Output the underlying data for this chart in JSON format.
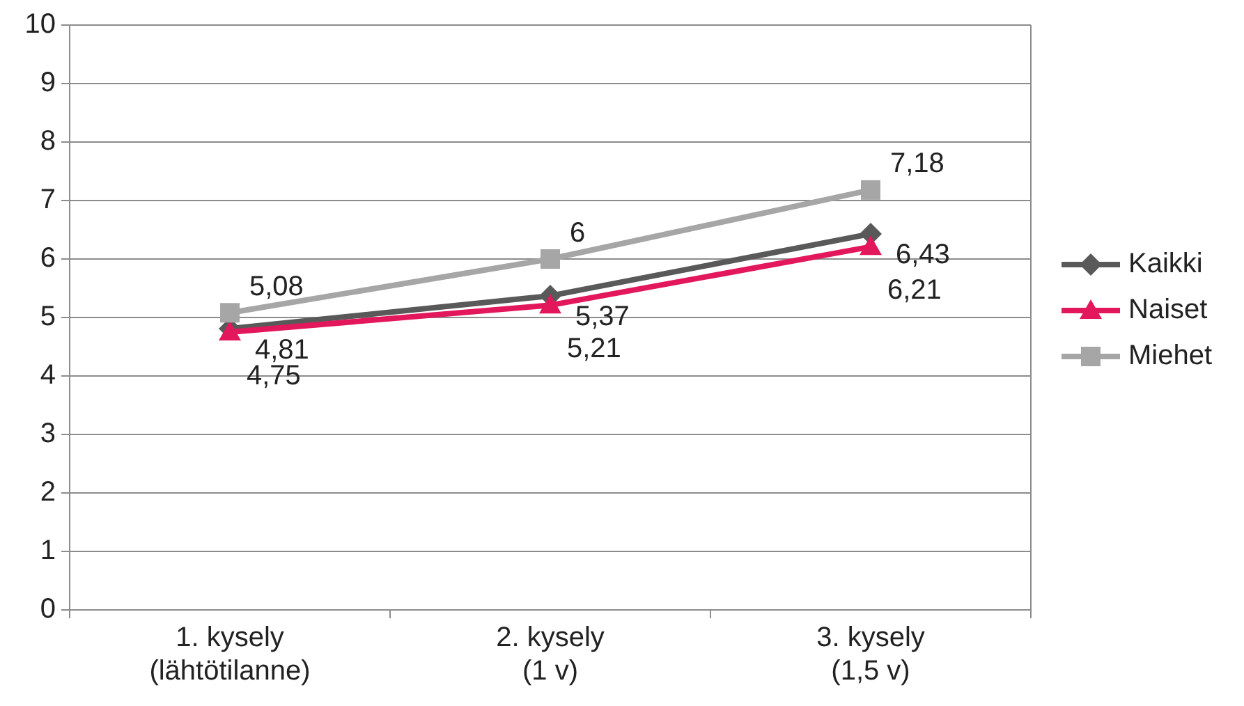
{
  "chart_data": {
    "type": "line",
    "categories": [
      "1. kysely\n(lähtötilanne)",
      "2. kysely\n(1 v)",
      "3. kysely\n(1,5 v)"
    ],
    "series": [
      {
        "name": "Kaikki",
        "color": "#595959",
        "marker": "diamond",
        "values": [
          4.81,
          5.37,
          6.43
        ],
        "value_labels": [
          "4,81",
          "5,37",
          "6,43"
        ]
      },
      {
        "name": "Naiset",
        "color": "#e3185c",
        "marker": "triangle",
        "values": [
          4.75,
          5.21,
          6.21
        ],
        "value_labels": [
          "4,75",
          "5,21",
          "6,21"
        ]
      },
      {
        "name": "Miehet",
        "color": "#a6a6a6",
        "marker": "square",
        "values": [
          5.08,
          6,
          7.18
        ],
        "value_labels": [
          "5,08",
          "6",
          "7,18"
        ]
      }
    ],
    "ylim": [
      0,
      10
    ],
    "yticks": [
      0,
      1,
      2,
      3,
      4,
      5,
      6,
      7,
      8,
      9,
      10
    ],
    "grid": "y",
    "legend": "right"
  }
}
